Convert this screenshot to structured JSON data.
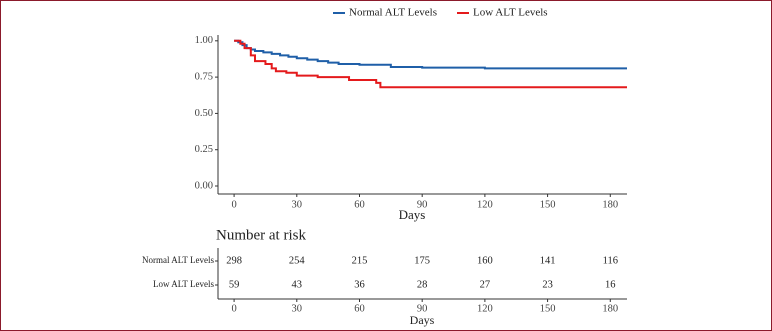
{
  "chart_data": {
    "type": "step",
    "series": [
      {
        "name": "Normal ALT Levels",
        "color": "#1f5fa8",
        "x": [
          0,
          2,
          4,
          6,
          8,
          10,
          14,
          18,
          22,
          26,
          30,
          35,
          40,
          45,
          50,
          60,
          75,
          90,
          120,
          188
        ],
        "values": [
          1.0,
          0.99,
          0.97,
          0.95,
          0.94,
          0.93,
          0.92,
          0.91,
          0.9,
          0.89,
          0.88,
          0.87,
          0.86,
          0.85,
          0.84,
          0.835,
          0.82,
          0.815,
          0.81,
          0.81
        ]
      },
      {
        "name": "Low ALT Levels",
        "color": "#e41a1c",
        "x": [
          0,
          3,
          5,
          8,
          10,
          15,
          18,
          20,
          25,
          30,
          40,
          55,
          68,
          70,
          188
        ],
        "values": [
          1.0,
          0.98,
          0.95,
          0.9,
          0.86,
          0.84,
          0.81,
          0.79,
          0.78,
          0.76,
          0.75,
          0.73,
          0.71,
          0.68,
          0.68
        ]
      }
    ],
    "xlabel": "Days",
    "xlim": [
      -7.7,
      188
    ],
    "xticks": [
      0,
      30,
      60,
      90,
      120,
      150,
      180
    ],
    "ylim": [
      -0.055,
      1.04
    ],
    "yticks": [
      {
        "value": 0,
        "label": "0.00"
      },
      {
        "value": 0.25,
        "label": "0.25"
      },
      {
        "value": 0.5,
        "label": "0.50"
      },
      {
        "value": 0.75,
        "label": "0.75"
      },
      {
        "value": 1,
        "label": "1.00"
      }
    ],
    "legend": "top"
  },
  "risk_table": {
    "title": "Number at risk",
    "times": [
      "0",
      "30",
      "60",
      "90",
      "120",
      "150",
      "180"
    ],
    "rows": [
      {
        "name": "Normal ALT Levels",
        "values": [
          "298",
          "254",
          "215",
          "175",
          "160",
          "141",
          "116"
        ]
      },
      {
        "name": "Low ALT Levels",
        "values": [
          "59",
          "43",
          "36",
          "28",
          "27",
          "23",
          "16"
        ]
      }
    ],
    "xlabel": "Days"
  }
}
